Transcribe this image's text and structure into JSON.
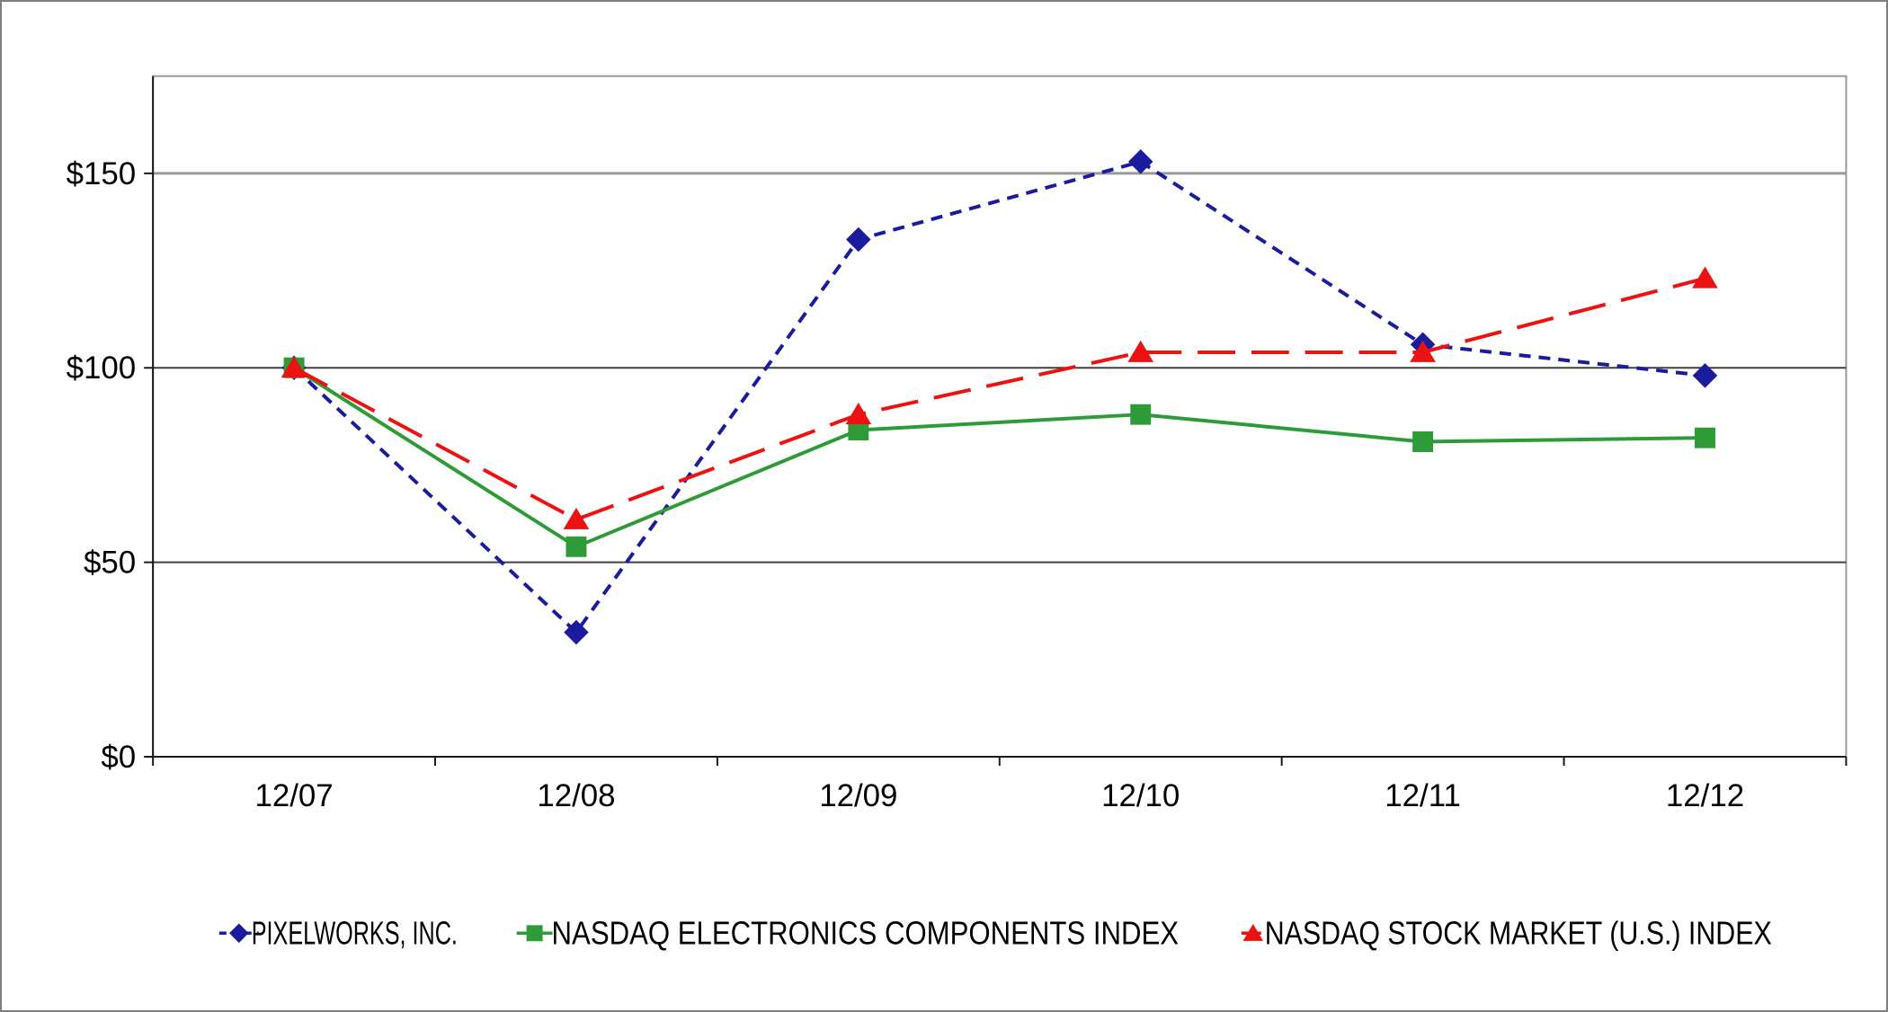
{
  "chart_data": {
    "type": "line",
    "title": "",
    "xlabel": "",
    "ylabel": "",
    "categories": [
      "12/07",
      "12/08",
      "12/09",
      "12/10",
      "12/11",
      "12/12"
    ],
    "series": [
      {
        "name": "PIXELWORKS, INC.",
        "color": "#1b1b9e",
        "marker": "diamond",
        "line_style": "dotted",
        "values": [
          100,
          32,
          133,
          153,
          106,
          98
        ]
      },
      {
        "name": "NASDAQ ELECTRONICS COMPONENTS INDEX",
        "color": "#2f9b38",
        "marker": "square",
        "line_style": "solid",
        "values": [
          100,
          54,
          84,
          88,
          81,
          82
        ]
      },
      {
        "name": "NASDAQ STOCK MARKET (U.S.) INDEX",
        "color": "#ee1111",
        "marker": "triangle",
        "line_style": "dashed",
        "values": [
          100,
          61,
          88,
          104,
          104,
          123
        ]
      }
    ],
    "ytick_labels": [
      "$0",
      "$50",
      "$100",
      "$150"
    ],
    "ytick_values": [
      0,
      50,
      100,
      150
    ],
    "ylim": [
      0,
      175
    ],
    "grid": true,
    "legend_position": "bottom"
  },
  "colors": {
    "background": "#ffffff",
    "outer_frame": "#7f7f7f",
    "plot_border": "#999999",
    "gridline_major": "#404040",
    "gridline_top": "#999999",
    "axis": "#1a1a1a",
    "text": "#000000"
  }
}
